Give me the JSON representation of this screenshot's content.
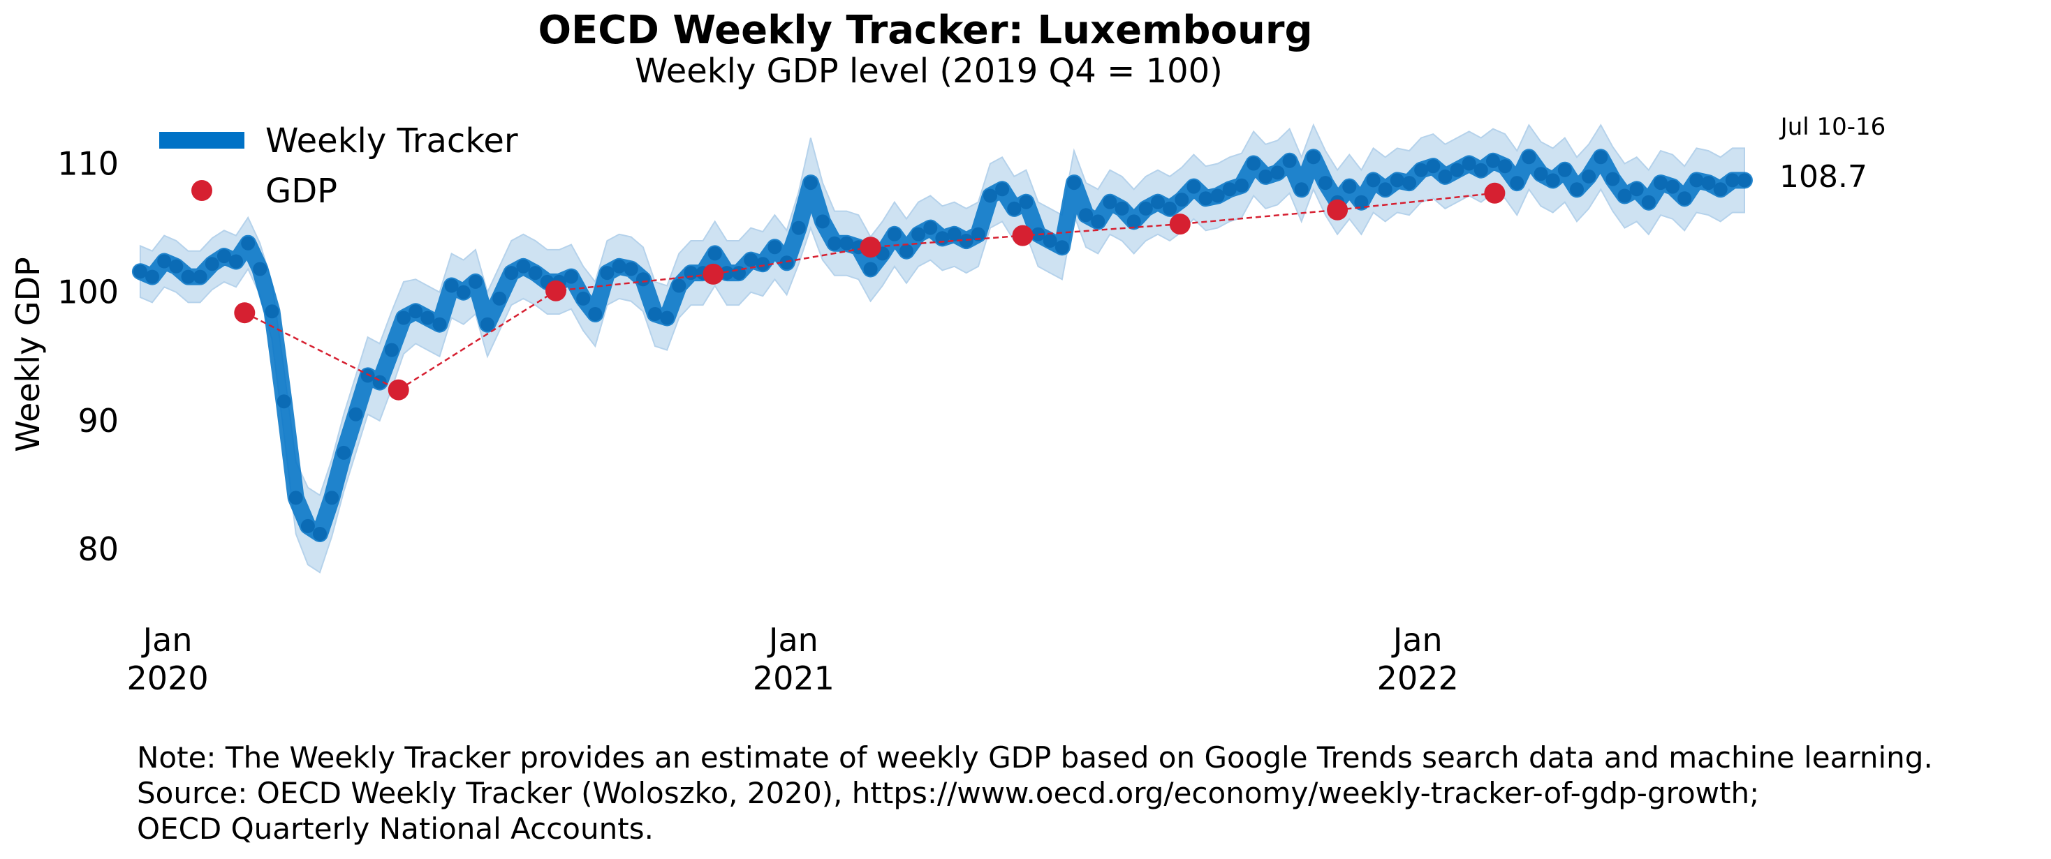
{
  "chart_data": {
    "type": "line",
    "title": "OECD Weekly Tracker: Luxembourg",
    "subtitle": "Weekly GDP level (2019 Q4 = 100)",
    "ylabel": "Weekly GDP",
    "xlabel": "",
    "ylim": [
      75.5,
      113.5
    ],
    "yticks": [
      80,
      90,
      100,
      110
    ],
    "xlim": [
      "2019-12-14",
      "2022-07-20"
    ],
    "xticks": [
      {
        "date": "2020-01-01",
        "line1": "Jan",
        "line2": "2020"
      },
      {
        "date": "2021-01-01",
        "line1": "Jan",
        "line2": "2021"
      },
      {
        "date": "2022-01-01",
        "line1": "Jan",
        "line2": "2022"
      }
    ],
    "grid": false,
    "legend_position": "top-left",
    "colors": {
      "tracker": "#0072c6",
      "band": "#c6ddf0",
      "gdp": "#d62031"
    },
    "series": [
      {
        "name": "Weekly Tracker",
        "kind": "line_with_band",
        "x": [
          "2019-12-16",
          "2019-12-23",
          "2019-12-30",
          "2020-01-06",
          "2020-01-13",
          "2020-01-20",
          "2020-01-27",
          "2020-02-03",
          "2020-02-10",
          "2020-02-17",
          "2020-02-24",
          "2020-03-02",
          "2020-03-09",
          "2020-03-16",
          "2020-03-23",
          "2020-03-30",
          "2020-04-06",
          "2020-04-13",
          "2020-04-20",
          "2020-04-27",
          "2020-05-04",
          "2020-05-11",
          "2020-05-18",
          "2020-05-25",
          "2020-06-01",
          "2020-06-08",
          "2020-06-15",
          "2020-06-22",
          "2020-06-29",
          "2020-07-06",
          "2020-07-13",
          "2020-07-20",
          "2020-07-27",
          "2020-08-03",
          "2020-08-10",
          "2020-08-17",
          "2020-08-24",
          "2020-08-31",
          "2020-09-07",
          "2020-09-14",
          "2020-09-21",
          "2020-09-28",
          "2020-10-05",
          "2020-10-12",
          "2020-10-19",
          "2020-10-26",
          "2020-11-02",
          "2020-11-09",
          "2020-11-16",
          "2020-11-23",
          "2020-11-30",
          "2020-12-07",
          "2020-12-14",
          "2020-12-21",
          "2020-12-28",
          "2021-01-04",
          "2021-01-11",
          "2021-01-18",
          "2021-01-25",
          "2021-02-01",
          "2021-02-08",
          "2021-02-15",
          "2021-02-22",
          "2021-03-01",
          "2021-03-08",
          "2021-03-15",
          "2021-03-22",
          "2021-03-29",
          "2021-04-05",
          "2021-04-12",
          "2021-04-19",
          "2021-04-26",
          "2021-05-03",
          "2021-05-10",
          "2021-05-17",
          "2021-05-24",
          "2021-05-31",
          "2021-06-07",
          "2021-06-14",
          "2021-06-21",
          "2021-06-28",
          "2021-07-05",
          "2021-07-12",
          "2021-07-19",
          "2021-07-26",
          "2021-08-02",
          "2021-08-09",
          "2021-08-16",
          "2021-08-23",
          "2021-08-30",
          "2021-09-06",
          "2021-09-13",
          "2021-09-20",
          "2021-09-27",
          "2021-10-04",
          "2021-10-11",
          "2021-10-18",
          "2021-10-25",
          "2021-11-01",
          "2021-11-08",
          "2021-11-15",
          "2021-11-22",
          "2021-11-29",
          "2021-12-06",
          "2021-12-13",
          "2021-12-20",
          "2021-12-27",
          "2022-01-03",
          "2022-01-10",
          "2022-01-17",
          "2022-01-24",
          "2022-01-31",
          "2022-02-07",
          "2022-02-14",
          "2022-02-21",
          "2022-02-28",
          "2022-03-07",
          "2022-03-14",
          "2022-03-21",
          "2022-03-28",
          "2022-04-04",
          "2022-04-11",
          "2022-04-18",
          "2022-04-25",
          "2022-05-02",
          "2022-05-09",
          "2022-05-16",
          "2022-05-23",
          "2022-05-30",
          "2022-06-06",
          "2022-06-13",
          "2022-06-20",
          "2022-06-27",
          "2022-07-04",
          "2022-07-11"
        ],
        "values": [
          101.6,
          101.2,
          102.4,
          102.0,
          101.2,
          101.2,
          102.2,
          102.8,
          102.4,
          103.8,
          101.8,
          98.5,
          91.5,
          84.0,
          81.8,
          81.2,
          84.0,
          87.5,
          90.5,
          93.5,
          93.0,
          95.5,
          98.0,
          98.5,
          98.0,
          97.5,
          100.5,
          100.0,
          100.8,
          97.5,
          99.5,
          101.5,
          102.0,
          101.5,
          100.8,
          100.8,
          101.2,
          99.5,
          98.3,
          101.5,
          102.0,
          101.8,
          101.0,
          98.3,
          98.0,
          100.5,
          101.5,
          101.5,
          103.0,
          101.5,
          101.5,
          102.5,
          102.2,
          103.5,
          102.3,
          105.0,
          108.5,
          105.5,
          103.8,
          103.8,
          103.5,
          101.8,
          103.0,
          104.5,
          103.2,
          104.5,
          105.0,
          104.2,
          104.5,
          104.0,
          104.5,
          107.5,
          108.0,
          106.5,
          107.0,
          104.5,
          104.0,
          103.5,
          108.5,
          106.0,
          105.5,
          107.0,
          106.5,
          105.5,
          106.5,
          107.0,
          106.5,
          107.2,
          108.2,
          107.3,
          107.5,
          108.0,
          108.3,
          110.0,
          109.0,
          109.3,
          110.2,
          108.0,
          110.5,
          108.5,
          107.0,
          108.2,
          107.0,
          108.7,
          108.0,
          108.7,
          108.5,
          109.5,
          109.8,
          109.0,
          109.5,
          110.0,
          109.5,
          110.2,
          109.8,
          108.5,
          110.5,
          109.2,
          108.7,
          109.5,
          108.0,
          109.0,
          110.5,
          108.8,
          107.5,
          108.0,
          107.0,
          108.5,
          108.2,
          107.3,
          108.7,
          108.5,
          108.0,
          108.7,
          108.7
        ],
        "band_halfwidth": [
          2.0,
          2.0,
          2.0,
          2.0,
          2.0,
          2.0,
          2.0,
          2.0,
          2.0,
          2.0,
          2.0,
          2.2,
          2.5,
          2.8,
          3.0,
          3.0,
          3.0,
          3.0,
          3.0,
          3.0,
          3.0,
          3.0,
          2.8,
          2.5,
          2.5,
          2.5,
          2.5,
          2.5,
          2.5,
          2.5,
          2.5,
          2.5,
          2.5,
          2.5,
          2.5,
          2.5,
          2.5,
          2.5,
          2.5,
          2.5,
          2.5,
          2.5,
          2.5,
          2.5,
          2.5,
          2.5,
          2.5,
          2.5,
          2.5,
          2.5,
          2.5,
          2.5,
          2.5,
          2.5,
          2.5,
          2.8,
          3.5,
          3.0,
          2.5,
          2.5,
          2.5,
          2.5,
          2.5,
          2.5,
          2.5,
          2.5,
          2.5,
          2.5,
          2.5,
          2.5,
          2.5,
          2.5,
          2.5,
          2.5,
          2.5,
          2.5,
          2.5,
          2.5,
          2.5,
          2.5,
          2.5,
          2.5,
          2.5,
          2.5,
          2.5,
          2.5,
          2.5,
          2.5,
          2.5,
          2.5,
          2.5,
          2.5,
          2.5,
          2.5,
          2.5,
          2.5,
          2.5,
          2.5,
          2.5,
          2.5,
          2.5,
          2.5,
          2.5,
          2.5,
          2.5,
          2.5,
          2.5,
          2.5,
          2.5,
          2.5,
          2.5,
          2.5,
          2.5,
          2.5,
          2.5,
          2.5,
          2.5,
          2.5,
          2.5,
          2.5,
          2.5,
          2.5,
          2.5,
          2.5,
          2.5,
          2.5,
          2.5,
          2.5,
          2.5,
          2.5,
          2.5,
          2.5,
          2.5,
          2.5,
          2.5
        ]
      },
      {
        "name": "GDP",
        "kind": "markers_dashed",
        "x": [
          "2020-02-15",
          "2020-05-15",
          "2020-08-15",
          "2020-11-15",
          "2021-02-15",
          "2021-05-15",
          "2021-08-15",
          "2021-11-15",
          "2022-02-15"
        ],
        "values": [
          98.4,
          92.4,
          100.1,
          101.4,
          103.5,
          104.4,
          105.3,
          106.4,
          107.7
        ]
      }
    ],
    "annotations": {
      "last_period": "Jul 10-16",
      "last_value": "108.7"
    }
  },
  "footer": {
    "note_line1": "Note: The Weekly Tracker provides an estimate of weekly GDP based on Google Trends search data and machine learning.",
    "note_line2": "Source: OECD Weekly Tracker (Woloszko, 2020), https://www.oecd.org/economy/weekly-tracker-of-gdp-growth;",
    "note_line3": "OECD Quarterly National Accounts."
  }
}
